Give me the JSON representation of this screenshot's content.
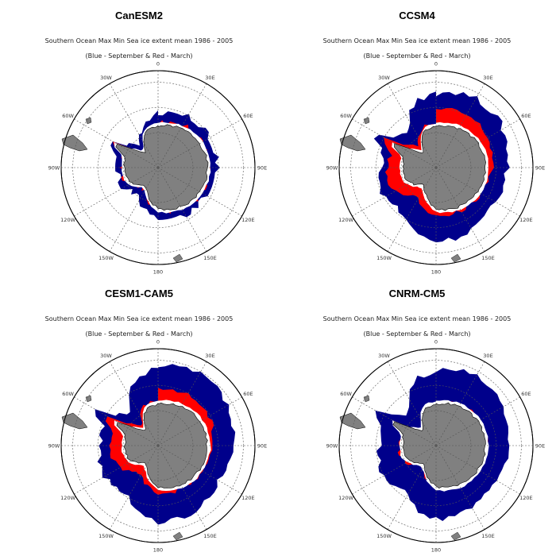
{
  "subtitle_line1": "Southern Ocean Max Min Sea ice extent mean 1986 - 2005",
  "subtitle_line2": "(Blue - September & Red - March)",
  "colors": {
    "september_ice": "#00008b",
    "march_ice": "#ff0000",
    "land": "#808080",
    "ocean": "#ffffff",
    "graticule": "#555555"
  },
  "projection": "south-polar-stereographic",
  "longitude_labels": {
    "top": "0",
    "upper_right_1": "30E",
    "upper_right_2": "60E",
    "right": "90E",
    "lower_right_1": "120E",
    "lower_right_2": "150E",
    "bottom": "180",
    "lower_left_2": "150W",
    "lower_left_1": "120W",
    "left": "90W",
    "upper_left_2": "60W",
    "upper_left_1": "30W"
  },
  "panels": [
    {
      "title": "CanESM2",
      "sep_extent": 0.62,
      "mar_extent": 0.45,
      "blocky": true
    },
    {
      "title": "CCSM4",
      "sep_extent": 0.85,
      "mar_extent": 0.62,
      "blocky": false
    },
    {
      "title": "CESM1-CAM5",
      "sep_extent": 0.88,
      "mar_extent": 0.6,
      "blocky": false
    },
    {
      "title": "CNRM-CM5",
      "sep_extent": 0.85,
      "mar_extent": 0.4,
      "blocky": false
    }
  ]
}
